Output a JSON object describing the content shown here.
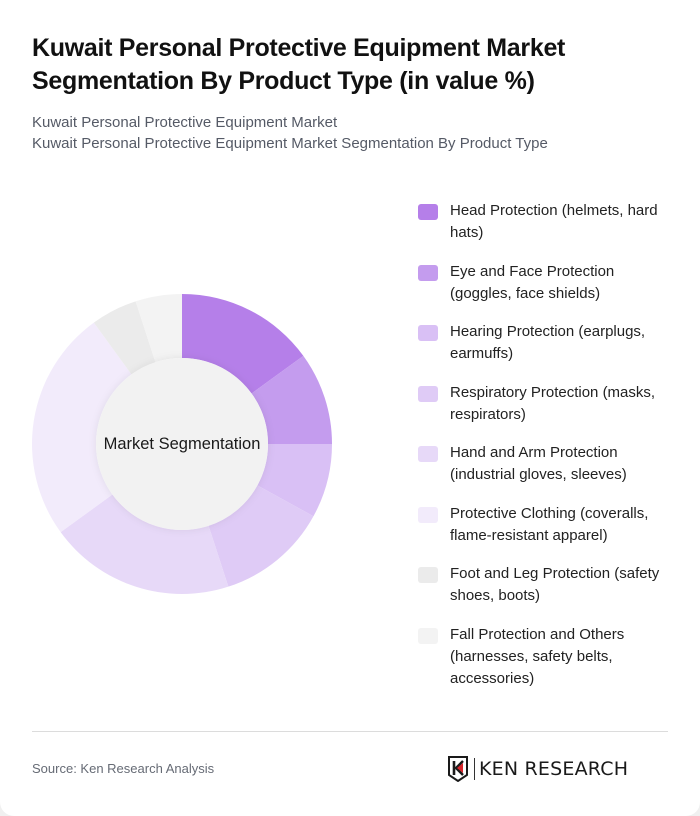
{
  "header": {
    "title": "Kuwait Personal Protective Equipment Market Segmentation By Product Type (in value %)",
    "subtitle_line1": "Kuwait Personal Protective Equipment Market",
    "subtitle_line2": "Kuwait Personal Protective Equipment Market Segmentation By Product Type"
  },
  "chart": {
    "center_label": "Market Segmentation"
  },
  "legend": {
    "items": [
      {
        "label": "Head Protection (helmets, hard hats)",
        "color": "#b57fe9"
      },
      {
        "label": "Eye and Face Protection (goggles, face shields)",
        "color": "#c49cee"
      },
      {
        "label": "Hearing Protection (earplugs, earmuffs)",
        "color": "#d9c0f5"
      },
      {
        "label": "Respiratory Protection (masks, respirators)",
        "color": "#dfcbf6"
      },
      {
        "label": "Hand and Arm Protection (industrial gloves, sleeves)",
        "color": "#e7d9f8"
      },
      {
        "label": "Protective Clothing (coveralls, flame-resistant apparel)",
        "color": "#f2ebfb"
      },
      {
        "label": "Foot and Leg Protection (safety shoes, boots)",
        "color": "#ebebeb"
      },
      {
        "label": "Fall Protection and Others (harnesses, safety belts, accessories)",
        "color": "#f3f3f3"
      }
    ]
  },
  "footer": {
    "source": "Source: Ken Research Analysis",
    "logo_text": "KEN RESEARCH"
  },
  "chart_data": {
    "type": "pie",
    "subtype": "donut",
    "title": "Kuwait Personal Protective Equipment Market Segmentation By Product Type (in value %)",
    "center_label": "Market Segmentation",
    "categories": [
      "Head Protection (helmets, hard hats)",
      "Eye and Face Protection (goggles, face shields)",
      "Hearing Protection (earplugs, earmuffs)",
      "Respiratory Protection (masks, respirators)",
      "Hand and Arm Protection (industrial gloves, sleeves)",
      "Protective Clothing (coveralls, flame-resistant apparel)",
      "Foot and Leg Protection (safety shoes, boots)",
      "Fall Protection and Others (harnesses, safety belts, accessories)"
    ],
    "values": [
      15,
      10,
      8,
      12,
      20,
      25,
      5,
      5
    ],
    "colors": [
      "#b57fe9",
      "#c49cee",
      "#d9c0f5",
      "#dfcbf6",
      "#e7d9f8",
      "#f2ebfb",
      "#ebebeb",
      "#f3f3f3"
    ],
    "unit": "%",
    "legend_position": "right",
    "start_angle": "12 o'clock, clockwise"
  }
}
